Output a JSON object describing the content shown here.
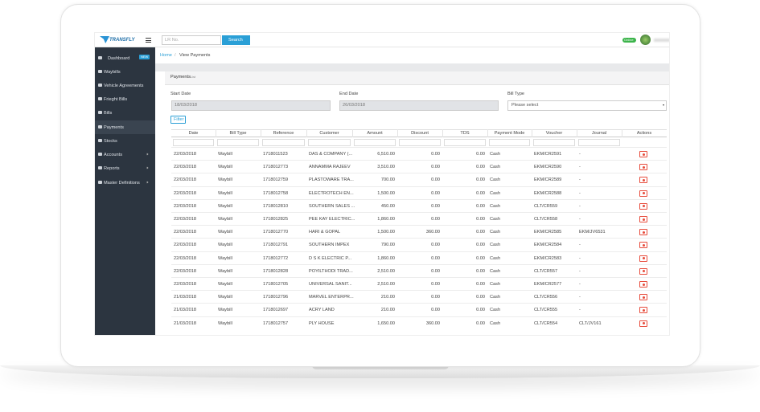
{
  "topbar": {
    "logo": "TRANSFLY",
    "search_placeholder": "LR No.",
    "search_button": "Search",
    "status": "Online"
  },
  "sidebar": {
    "items": [
      "Dashboard",
      "Waybills",
      "Vehicle Agreements",
      "Frieght Bills",
      "Bills",
      "Payments",
      "Stocks",
      "Accounts",
      "Reports",
      "Master Definitions"
    ],
    "new_badge": "NEW"
  },
  "breadcrumb": {
    "home": "Home",
    "separator": "/",
    "current": "View Payments"
  },
  "card": {
    "title": "Payments",
    "subtitle": "List"
  },
  "form": {
    "start_label": "Start Date",
    "start_value": "18/03/2018",
    "end_label": "End Date",
    "end_value": "26/03/2018",
    "bill_type_label": "Bill Type",
    "bill_type_value": "Please select",
    "filter_button": "Filter"
  },
  "table": {
    "columns": [
      "Date",
      "Bill Type",
      "Reference",
      "Customer",
      "Amount",
      "Discount",
      "TDS",
      "Payment Mode",
      "Voucher",
      "Journal",
      "Actions"
    ],
    "rows": [
      [
        "22/03/2018",
        "Waybill",
        "1718011523",
        "DAS & COMPANY (...",
        "6,510.00",
        "0.00",
        "0.00",
        "Cash",
        "EKM/CR2591",
        "-"
      ],
      [
        "22/03/2018",
        "Waybill",
        "1718012773",
        "ANNAMMA RAJEEV",
        "3,510.00",
        "0.00",
        "0.00",
        "Cash",
        "EKM/CR2590",
        "-"
      ],
      [
        "22/03/2018",
        "Waybill",
        "1718012759",
        "PLASTOWARE TRA...",
        "700.00",
        "0.00",
        "0.00",
        "Cash",
        "EKM/CR2589",
        "-"
      ],
      [
        "22/03/2018",
        "Waybill",
        "1718012758",
        "ELECTROTECH EN...",
        "1,500.00",
        "0.00",
        "0.00",
        "Cash",
        "EKM/CR2588",
        "-"
      ],
      [
        "22/03/2018",
        "Waybill",
        "1718012810",
        "SOUTHERN SALES ...",
        "450.00",
        "0.00",
        "0.00",
        "Cash",
        "CLT/CR559",
        "-"
      ],
      [
        "22/03/2018",
        "Waybill",
        "1718012825",
        "PEE KAY ELECTRIC...",
        "1,860.00",
        "0.00",
        "0.00",
        "Cash",
        "CLT/CR558",
        "-"
      ],
      [
        "22/03/2018",
        "Waybill",
        "1718012770",
        "HARI & GOPAL",
        "1,500.00",
        "360.00",
        "0.00",
        "Cash",
        "EKM/CR2585",
        "EKM/JV6531"
      ],
      [
        "22/03/2018",
        "Waybill",
        "1718012791",
        "SOUTHERN IMPEX",
        "790.00",
        "0.00",
        "0.00",
        "Cash",
        "EKM/CR2584",
        "-"
      ],
      [
        "22/03/2018",
        "Waybill",
        "1718012772",
        "D S K ELECTRIC P...",
        "1,860.00",
        "0.00",
        "0.00",
        "Cash",
        "EKM/CR2583",
        "-"
      ],
      [
        "22/03/2018",
        "Waybill",
        "1718012828",
        "POYILTHODI TRAD...",
        "2,510.00",
        "0.00",
        "0.00",
        "Cash",
        "CLT/CR557",
        "-"
      ],
      [
        "22/03/2018",
        "Waybill",
        "1718012705",
        "UNIVERSAL SANIT...",
        "2,510.00",
        "0.00",
        "0.00",
        "Cash",
        "EKM/CR2577",
        "-"
      ],
      [
        "21/03/2018",
        "Waybill",
        "1718012796",
        "MARVEL ENTERPR...",
        "210.00",
        "0.00",
        "0.00",
        "Cash",
        "CLT/CR556",
        "-"
      ],
      [
        "21/03/2018",
        "Waybill",
        "1718012697",
        "ACRY LAND",
        "210.00",
        "0.00",
        "0.00",
        "Cash",
        "CLT/CR555",
        "-"
      ],
      [
        "21/03/2018",
        "Waybill",
        "1718012757",
        "PLY HOUSE",
        "1,650.00",
        "360.00",
        "0.00",
        "Cash",
        "CLT/CR554",
        "CLT/JV161"
      ]
    ]
  }
}
